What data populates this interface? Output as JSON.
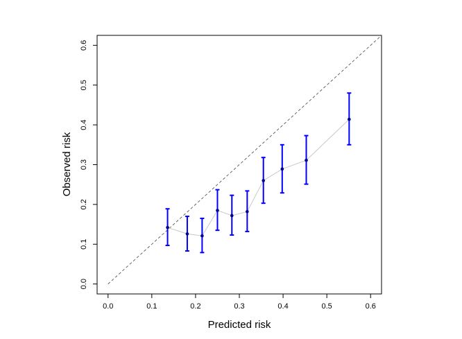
{
  "chart_data": {
    "type": "scatter",
    "title": "",
    "xlabel": "Predicted risk",
    "ylabel": "Observed risk",
    "xlim": [
      -0.025,
      0.625
    ],
    "ylim": [
      -0.025,
      0.625
    ],
    "x_ticks": [
      0.0,
      0.1,
      0.2,
      0.3,
      0.4,
      0.5,
      0.6
    ],
    "y_ticks": [
      0.0,
      0.1,
      0.2,
      0.3,
      0.4,
      0.5,
      0.6
    ],
    "x_tick_labels": [
      "0.0",
      "0.1",
      "0.2",
      "0.3",
      "0.4",
      "0.5",
      "0.6"
    ],
    "y_tick_labels": [
      "0.0",
      "0.1",
      "0.2",
      "0.3",
      "0.4",
      "0.5",
      "0.6"
    ],
    "reference_line": {
      "from": [
        0,
        0
      ],
      "to": [
        0.625,
        0.625
      ],
      "style": "dashed",
      "color": "#444444"
    },
    "connecting_line_color": "#c8c8c8",
    "point_color": "#000080",
    "errorbar_color": "#0000ff",
    "series": [
      {
        "points": [
          {
            "x": 0.136,
            "y": 0.142,
            "lower": 0.097,
            "upper": 0.189
          },
          {
            "x": 0.181,
            "y": 0.126,
            "lower": 0.083,
            "upper": 0.17
          },
          {
            "x": 0.215,
            "y": 0.121,
            "lower": 0.079,
            "upper": 0.165
          },
          {
            "x": 0.25,
            "y": 0.185,
            "lower": 0.135,
            "upper": 0.237
          },
          {
            "x": 0.283,
            "y": 0.172,
            "lower": 0.123,
            "upper": 0.223
          },
          {
            "x": 0.318,
            "y": 0.182,
            "lower": 0.132,
            "upper": 0.234
          },
          {
            "x": 0.355,
            "y": 0.26,
            "lower": 0.203,
            "upper": 0.318
          },
          {
            "x": 0.398,
            "y": 0.289,
            "lower": 0.229,
            "upper": 0.35
          },
          {
            "x": 0.453,
            "y": 0.311,
            "lower": 0.251,
            "upper": 0.373
          },
          {
            "x": 0.551,
            "y": 0.414,
            "lower": 0.35,
            "upper": 0.48
          }
        ]
      }
    ],
    "grid": false,
    "legend": false
  }
}
